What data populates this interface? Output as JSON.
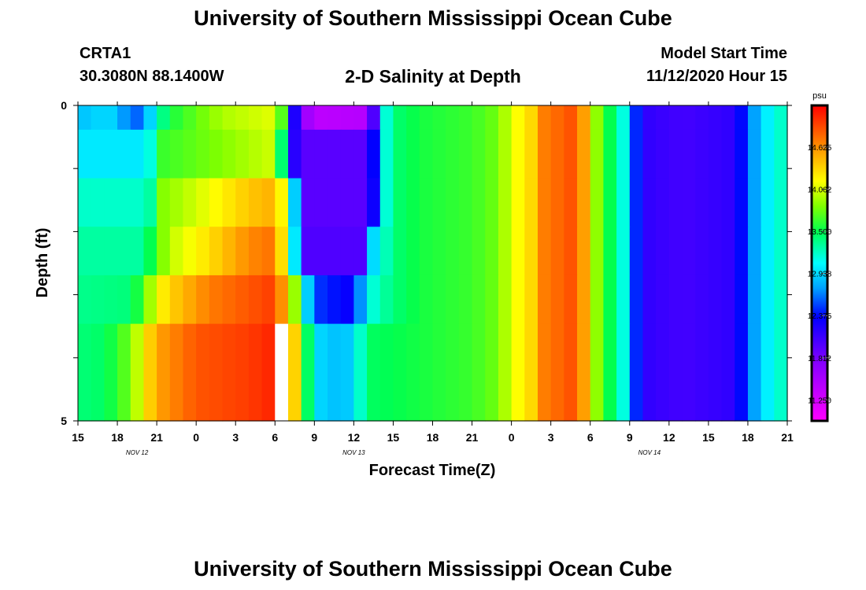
{
  "header": {
    "title": "University of Southern Mississippi Ocean Cube",
    "station": "CRTA1",
    "coords": "30.3080N 88.1400W",
    "plot_title": "2-D Salinity at Depth",
    "start_label": "Model Start Time",
    "start_value": "11/12/2020 Hour 15"
  },
  "footer": {
    "title": "University of Southern Mississippi Ocean Cube"
  },
  "chart_data": {
    "type": "heatmap",
    "title": "2-D Salinity at Depth",
    "xlabel": "Forecast Time(Z)",
    "ylabel": "Depth (ft)",
    "units": "psu",
    "x_hours": [
      0,
      54
    ],
    "y_range": [
      0,
      5
    ],
    "y_tick_labels": [
      "0",
      "5"
    ],
    "x_tick_labels": [
      "15",
      "18",
      "21",
      "0",
      "3",
      "6",
      "9",
      "12",
      "15",
      "18",
      "21",
      "0",
      "3",
      "6",
      "9",
      "12",
      "15",
      "18",
      "21"
    ],
    "date_labels": [
      {
        "text": "NOV  12",
        "hour": 4.5
      },
      {
        "text": "NOV  13",
        "hour": 21
      },
      {
        "text": "NOV  14",
        "hour": 43.5
      }
    ],
    "colorbar_ticks": [
      "14.625",
      "14.062",
      "13.500",
      "12.938",
      "12.375",
      "11.812",
      "11.250"
    ],
    "colorbar_range": [
      10.97,
      15.18
    ],
    "layers": [
      {
        "keys": [
          0,
          12.85,
          2,
          12.95,
          3,
          12.9,
          4,
          12.55,
          5,
          12.65,
          6,
          13.2,
          7,
          13.55,
          9,
          13.75,
          11,
          13.95,
          15,
          14.1,
          15.6,
          13.65,
          16,
          12.7,
          17,
          11.75,
          18,
          11.4,
          22,
          11.45,
          22.5,
          12.0,
          23,
          12.95,
          24,
          13.4,
          26,
          13.55,
          30,
          13.65,
          32,
          13.8,
          33,
          14.1,
          35,
          14.4,
          35.5,
          14.7,
          38,
          14.9,
          38.6,
          14.5,
          39,
          14.1,
          40,
          13.65,
          41,
          13.35,
          42,
          12.95,
          42.5,
          12.45,
          43,
          12.15,
          46,
          12.05,
          50,
          12.15,
          51,
          12.6,
          52,
          12.9,
          53,
          13.15,
          54,
          13.25
        ]
      },
      {
        "keys": [
          0,
          13.0,
          5,
          13.0,
          6,
          13.3,
          6.5,
          13.65,
          10,
          13.8,
          15,
          14.05,
          15.6,
          13.3,
          16,
          12.4,
          17,
          11.95,
          22,
          11.95,
          22.5,
          12.35,
          23,
          12.95,
          24,
          13.4,
          26,
          13.55,
          30,
          13.65,
          32,
          13.8,
          33,
          14.1,
          35,
          14.4,
          35.5,
          14.7,
          38,
          14.9,
          38.6,
          14.5,
          39,
          14.1,
          40,
          13.65,
          41,
          13.35,
          42,
          12.95,
          42.5,
          12.45,
          43,
          12.15,
          46,
          12.05,
          50,
          12.15,
          51,
          12.6,
          52,
          12.9,
          53,
          13.15,
          54,
          13.25
        ]
      },
      {
        "keys": [
          0,
          13.2,
          5,
          13.2,
          6,
          13.4,
          6.5,
          13.85,
          9,
          14.05,
          13,
          14.4,
          15,
          14.5,
          15.5,
          14.2,
          16,
          13.5,
          17,
          12.3,
          17.5,
          11.95,
          22,
          11.95,
          22.5,
          12.3,
          23,
          12.95,
          24,
          13.4,
          26,
          13.55,
          30,
          13.65,
          32,
          13.8,
          33,
          14.1,
          35,
          14.4,
          35.5,
          14.7,
          38,
          14.9,
          38.6,
          14.5,
          39,
          14.1,
          40,
          13.65,
          41,
          13.35,
          42,
          12.95,
          42.5,
          12.45,
          43,
          12.15,
          46,
          12.05,
          50,
          12.15,
          51,
          12.6,
          52,
          12.9,
          53,
          13.15,
          54,
          13.25
        ]
      },
      {
        "keys": [
          0,
          13.3,
          5,
          13.3,
          6,
          13.7,
          7,
          14.0,
          10,
          14.3,
          13,
          14.65,
          15,
          14.75,
          15.5,
          14.3,
          16,
          13.5,
          17,
          12.5,
          17.5,
          12.0,
          21.5,
          12.0,
          22,
          12.6,
          22.5,
          12.95,
          24,
          13.4,
          26,
          13.55,
          30,
          13.65,
          32,
          13.8,
          33,
          14.1,
          35,
          14.4,
          35.5,
          14.7,
          38,
          14.9,
          38.6,
          14.5,
          39,
          14.1,
          40,
          13.65,
          41,
          13.35,
          42,
          12.95,
          42.5,
          12.45,
          43,
          12.15,
          46,
          12.05,
          50,
          12.15,
          51,
          12.6,
          52,
          12.9,
          53,
          13.15,
          54,
          13.25
        ]
      },
      {
        "keys": [
          0,
          13.35,
          4,
          13.4,
          5,
          13.7,
          6,
          14.15,
          7,
          14.35,
          10,
          14.7,
          13,
          14.85,
          15,
          14.95,
          16,
          14.3,
          17,
          13.5,
          17.5,
          12.9,
          18,
          12.5,
          21,
          12.3,
          21.5,
          12.7,
          22,
          13.1,
          24,
          13.4,
          26,
          13.55,
          30,
          13.65,
          32,
          13.8,
          33,
          14.1,
          35,
          14.4,
          35.5,
          14.7,
          38,
          14.9,
          38.6,
          14.5,
          39,
          14.1,
          40,
          13.65,
          41,
          13.35,
          42,
          12.95,
          42.5,
          12.45,
          43,
          12.15,
          46,
          12.05,
          50,
          12.15,
          51,
          12.6,
          52,
          12.9,
          53,
          13.15,
          54,
          13.25
        ]
      },
      {
        "keys": [
          0,
          13.4,
          2,
          13.45,
          4,
          13.8,
          5,
          14.2,
          6,
          14.55,
          9,
          14.85,
          13,
          14.95,
          15,
          15.05,
          16,
          14.7,
          17,
          14.0,
          17.5,
          13.45,
          18,
          13.0,
          19,
          12.85,
          21,
          12.9,
          21.5,
          13.2,
          22,
          13.45,
          26,
          13.55,
          30,
          13.65,
          32,
          13.8,
          33,
          14.1,
          35,
          14.4,
          35.5,
          14.7,
          38,
          14.9,
          38.6,
          14.5,
          39,
          14.1,
          40,
          13.65,
          41,
          13.35,
          42,
          12.95,
          42.5,
          12.45,
          43,
          12.15,
          46,
          12.05,
          50,
          12.15,
          51,
          12.6,
          52,
          12.9,
          53,
          13.15,
          54,
          13.25
        ]
      }
    ],
    "missing_cells": [
      {
        "layer": 5,
        "hour": 15
      }
    ]
  }
}
